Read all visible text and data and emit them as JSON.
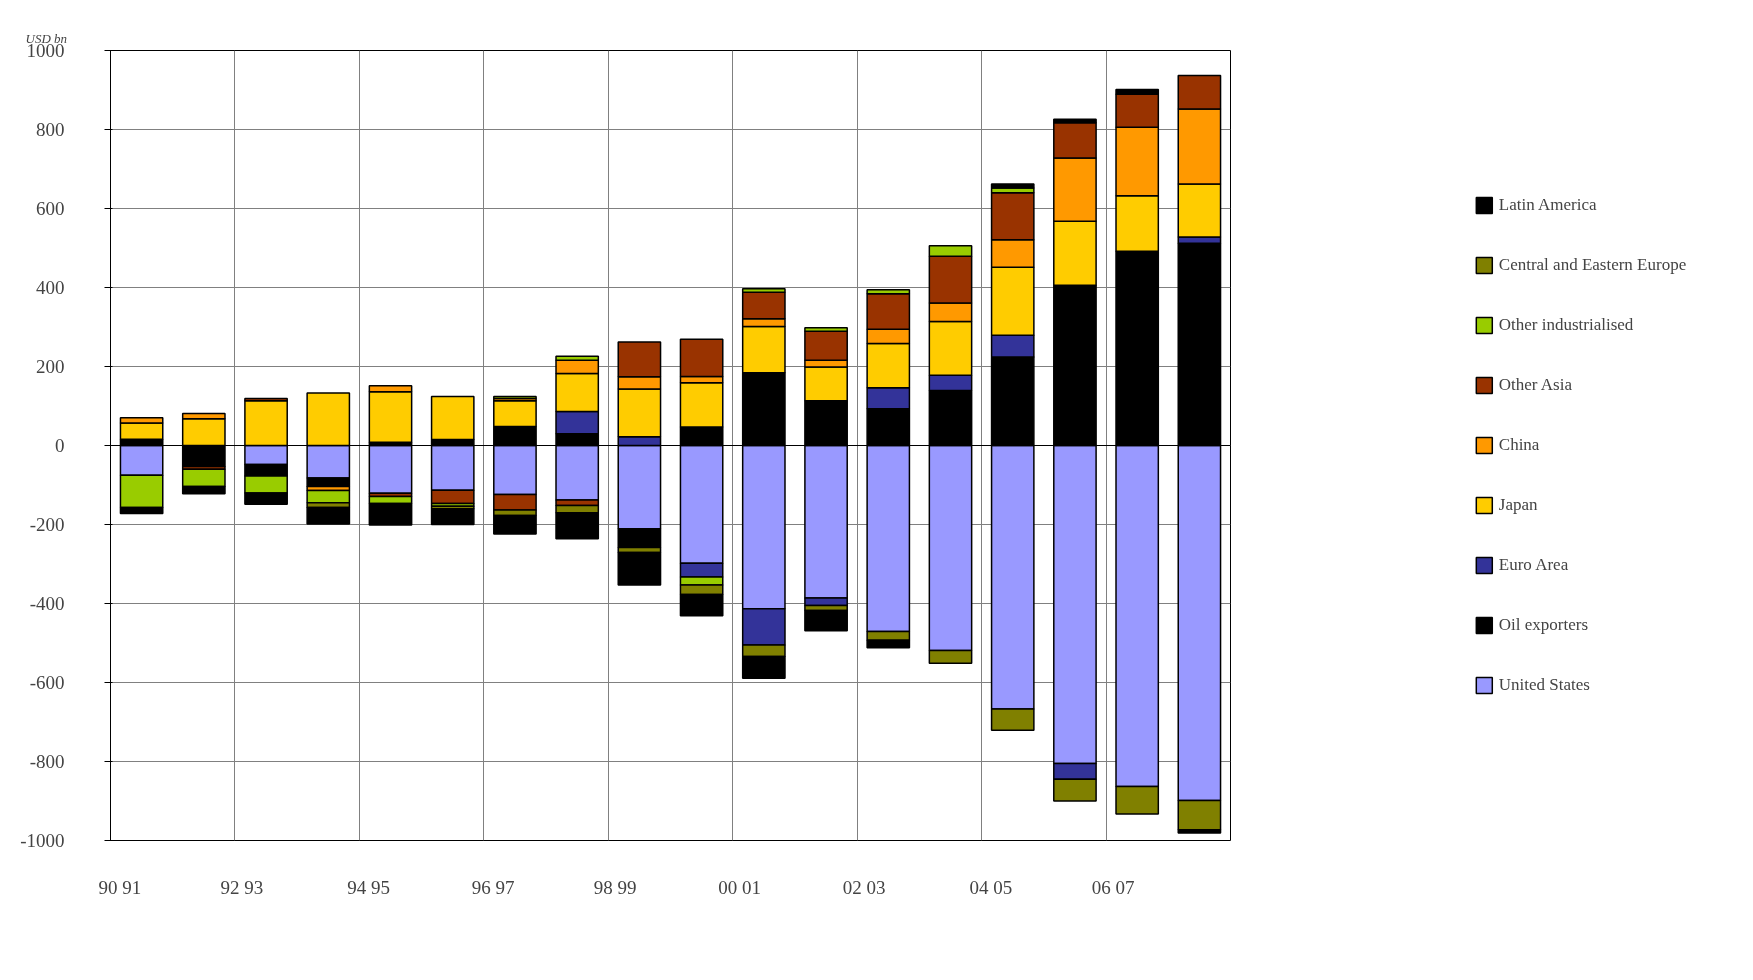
{
  "chart_data": {
    "type": "bar",
    "stacked": true,
    "ylabel": "USD bn",
    "categories": [
      null,
      null,
      null,
      null,
      null,
      null,
      null,
      null,
      null,
      null,
      null,
      null,
      null,
      null,
      null,
      null,
      null,
      null
    ],
    "annotations": [
      "90 91",
      "92  93",
      "94 95",
      "96 97",
      "98  99",
      "00  01",
      "02  03",
      "04 05",
      "06  07"
    ],
    "ylim": [
      -1000,
      1000
    ],
    "yticks": [
      -1000,
      -800,
      -600,
      -400,
      -200,
      0,
      200,
      400,
      600,
      800,
      1000
    ],
    "grid": true,
    "legend": "right",
    "series": [
      {
        "name": "United States",
        "color": "#9999ff",
        "values": [
          -75,
          null,
          -48,
          -82,
          -121,
          -113,
          -124,
          -138,
          -211,
          -298,
          -413,
          -386,
          -471,
          -519,
          -667,
          -805,
          -863,
          -899
        ]
      },
      {
        "name": "Oil exporters",
        "color": "#000000",
        "values": [
          16,
          -53,
          -29,
          -22,
          8,
          15,
          48,
          30,
          -47,
          47,
          184,
          113,
          93,
          139,
          224,
          406,
          492,
          512
        ]
      },
      {
        "name": "Euro Area",
        "color": "#333399",
        "values": [
          null,
          null,
          null,
          null,
          null,
          null,
          null,
          56,
          22,
          -35,
          -92,
          -19,
          53,
          39,
          55,
          -40,
          null,
          16
        ]
      },
      {
        "name": "Japan",
        "color": "#ffcc00",
        "values": [
          41,
          68,
          113,
          133,
          128,
          109,
          65,
          96,
          121,
          112,
          117,
          86,
          112,
          136,
          172,
          162,
          140,
          134
        ]
      },
      {
        "name": "China",
        "color": "#ff9900",
        "values": [
          13,
          13,
          null,
          -10,
          15,
          null,
          6,
          34,
          31,
          16,
          20,
          17,
          36,
          47,
          70,
          160,
          174,
          190
        ]
      },
      {
        "name": "Other Asia",
        "color": "#993300",
        "values": [
          null,
          -7,
          6,
          null,
          -8,
          -34,
          -39,
          -14,
          88,
          94,
          67,
          73,
          90,
          118,
          119,
          89,
          83,
          85
        ]
      },
      {
        "name": "Other industrialised",
        "color": "#99cc00",
        "values": [
          -82,
          -44,
          -43,
          -31,
          -18,
          -7,
          5,
          10,
          null,
          -20,
          9,
          9,
          10,
          27,
          12,
          null,
          null,
          null
        ]
      },
      {
        "name": "Central and Eastern Europe",
        "color": "#808000",
        "values": [
          null,
          null,
          null,
          -12,
          null,
          -6,
          -14,
          -18,
          -13,
          -24,
          -29,
          -13,
          -22,
          -32,
          -54,
          -55,
          -70,
          -74
        ]
      },
      {
        "name": "Latin America",
        "color": "#000000",
        "values": [
          -15,
          -18,
          -29,
          -42,
          -54,
          -40,
          -47,
          -66,
          -82,
          -54,
          -55,
          -51,
          -19,
          null,
          10,
          9,
          12,
          -8
        ]
      }
    ]
  }
}
